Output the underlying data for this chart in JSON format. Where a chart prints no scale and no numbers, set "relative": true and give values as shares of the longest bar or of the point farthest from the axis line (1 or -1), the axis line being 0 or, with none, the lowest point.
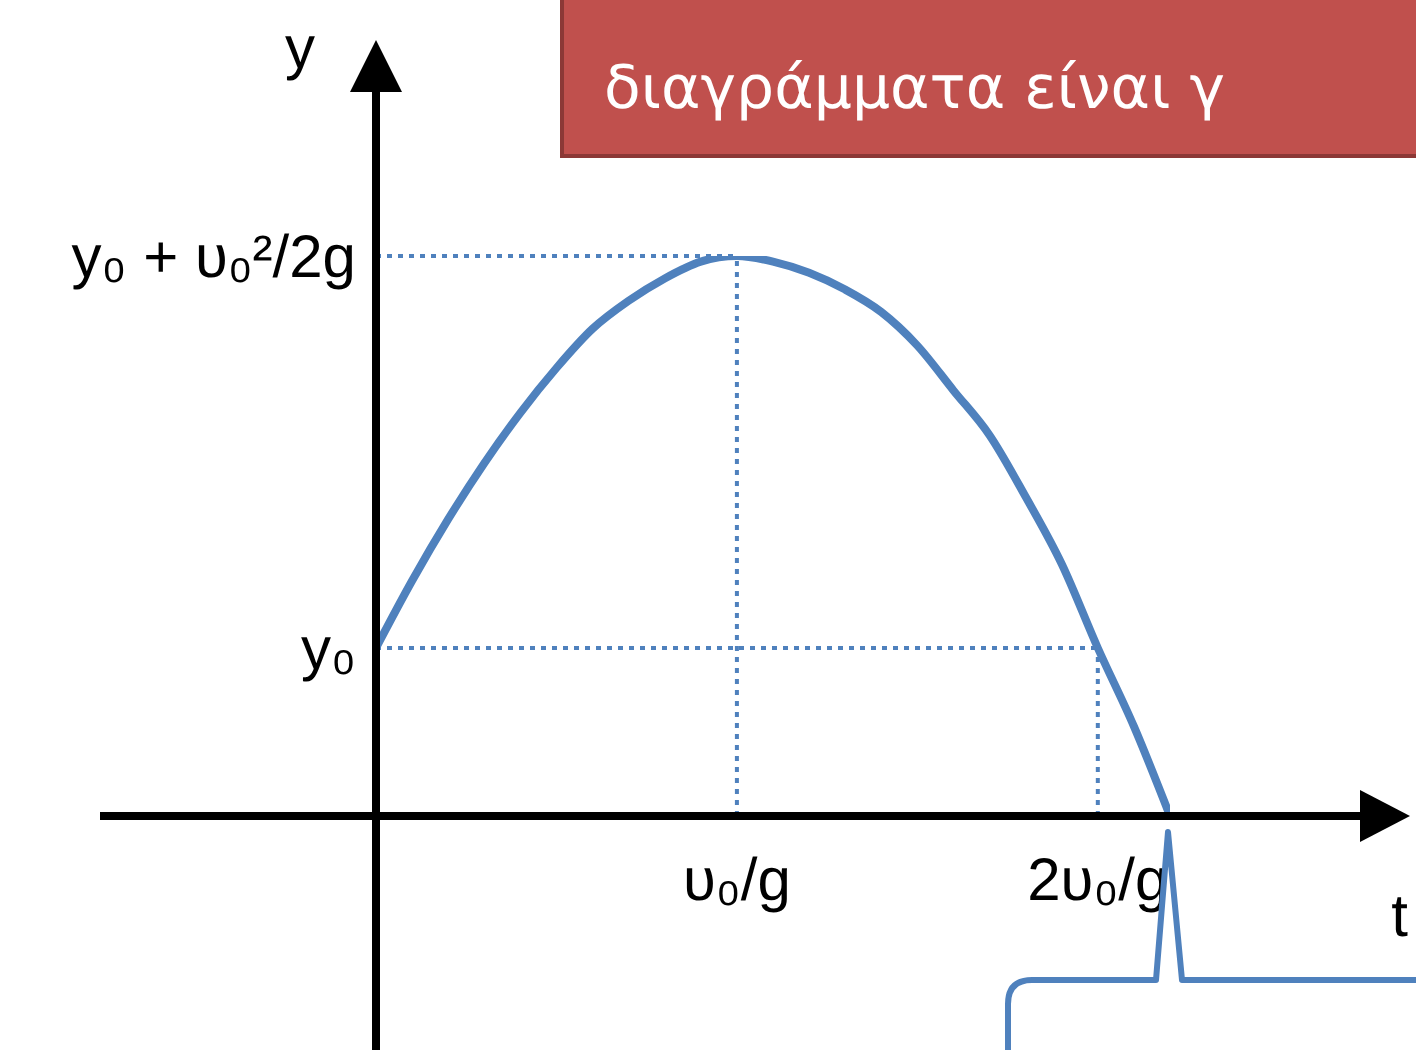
{
  "chart_data": {
    "type": "line",
    "relative": true,
    "xlabel": "t",
    "ylabel": "y",
    "annotations": [
      "διαγράμματα είναι γ"
    ],
    "categories": [
      null,
      null,
      null,
      null,
      null,
      null,
      null,
      null,
      null,
      null,
      "υ₀/g",
      null,
      null,
      null,
      null,
      null,
      null,
      null,
      null,
      null,
      "2υ₀/g",
      null,
      null
    ],
    "marker": "none",
    "line_style": "solid",
    "series": [
      {
        "color": "#4f81bd",
        "values": [
          0.3,
          0.42,
          0.53,
          0.63,
          0.72,
          0.8,
          0.87,
          0.92,
          0.96,
          0.99,
          1,
          0.99,
          0.97,
          0.94,
          0.9,
          0.84,
          0.76,
          0.68,
          0.57,
          0.45,
          0.3,
          0.16,
          0
        ]
      }
    ],
    "ref_lines": [
      {
        "axis": "y",
        "value": 1,
        "label": "y₀ + υ₀²/2g",
        "color": "#4f81bd",
        "line_style": "dotted"
      },
      {
        "axis": "y",
        "value": 0.3,
        "label": "y₀",
        "color": "#4f81bd",
        "line_style": "dotted"
      },
      {
        "axis": "x",
        "value": "υ₀/g",
        "color": "#4f81bd",
        "line_style": "dotted"
      },
      {
        "axis": "x",
        "value": "2υ₀/g",
        "color": "#4f81bd",
        "line_style": "dotted"
      }
    ]
  }
}
